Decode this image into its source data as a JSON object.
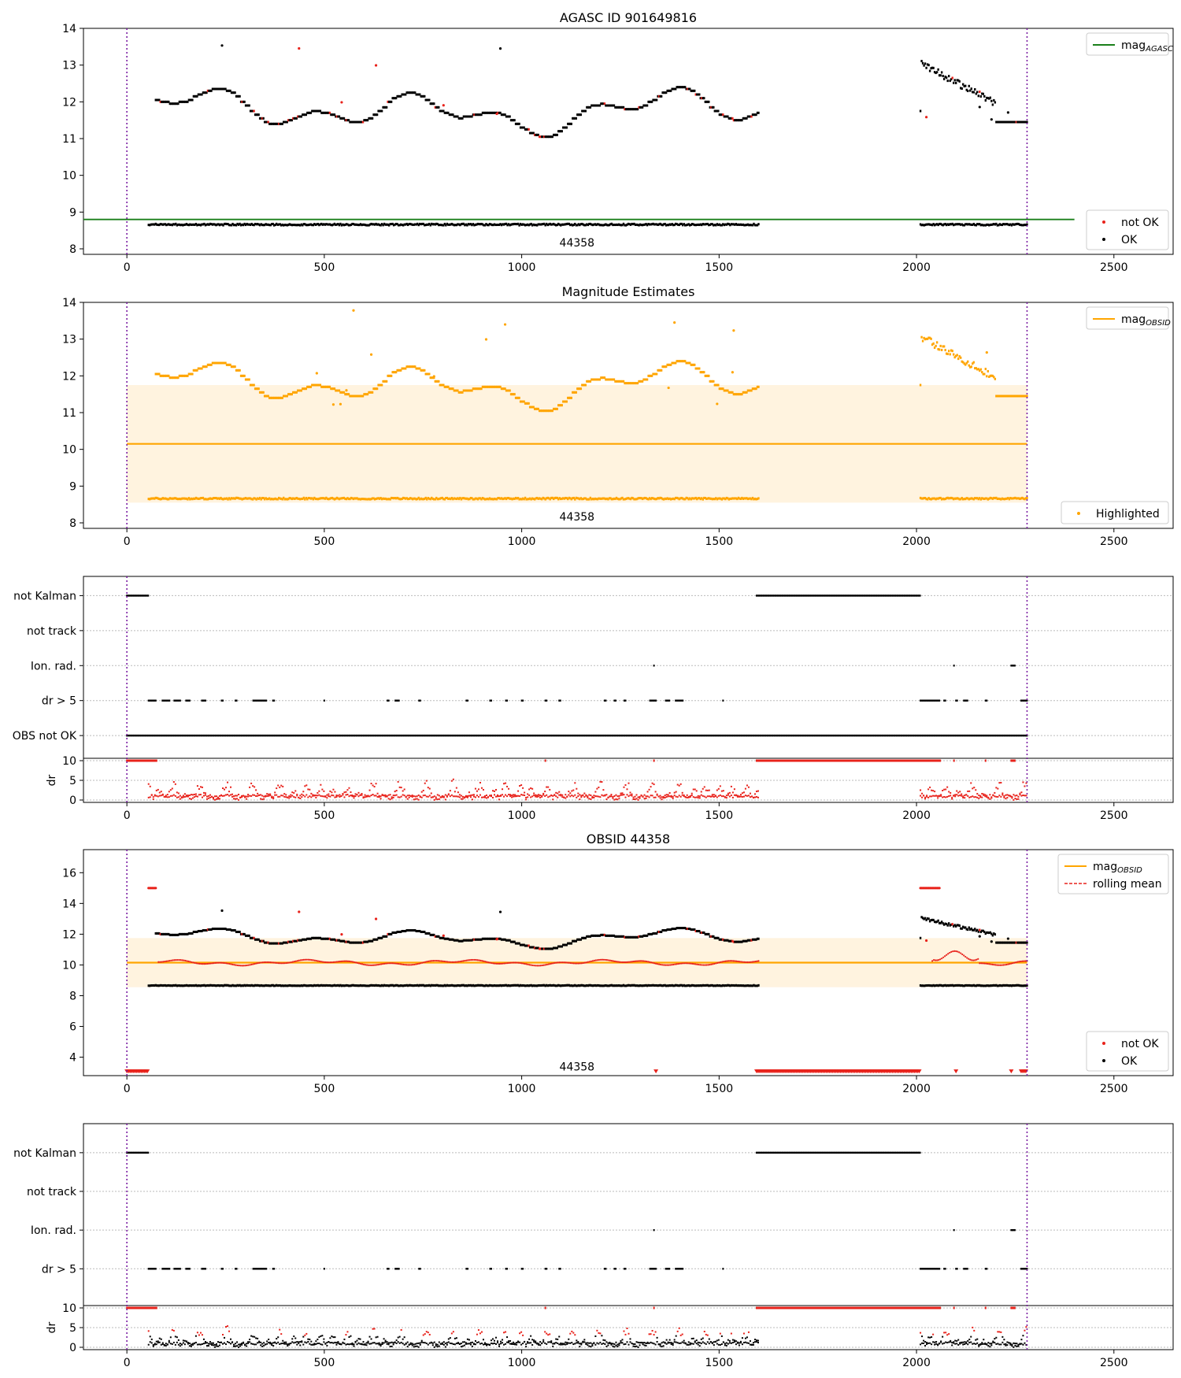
{
  "chart_data": [
    {
      "type": "scatter",
      "title": "AGASC ID 901649816",
      "xlabel": "",
      "ylabel": "",
      "xlim": [
        -110,
        2650
      ],
      "ylim": [
        7.85,
        14.0
      ],
      "xticks": [
        0,
        500,
        1000,
        1500,
        2000,
        2500
      ],
      "yticks": [
        8,
        9,
        10,
        11,
        12,
        13,
        14
      ],
      "grid": false,
      "vlines": [
        0,
        2280
      ],
      "hlines": [
        {
          "name": "mag_AGASC",
          "y": 8.8,
          "x_range": [
            -110,
            2400
          ],
          "color": "#1a7f1a"
        }
      ],
      "obsid_label": {
        "text": "44358",
        "x": 1140,
        "y": 8.17
      },
      "legends": [
        {
          "placement": "upper right",
          "entries": [
            {
              "label": "mag",
              "sub": "AGASC",
              "kind": "line",
              "color": "#1a7f1a"
            }
          ]
        },
        {
          "placement": "lower right",
          "entries": [
            {
              "label": "not OK",
              "kind": "dot",
              "color": "#e8221b"
            },
            {
              "label": "OK",
              "kind": "dot",
              "color": "#000000"
            }
          ]
        }
      ],
      "band": null,
      "line_y": null,
      "segments": [
        [
          55,
          1600
        ],
        [
          2010,
          2280
        ]
      ],
      "series": [
        {
          "name": "OK",
          "color": "#000000"
        },
        {
          "name": "not OK",
          "color": "#e8221b"
        }
      ]
    },
    {
      "type": "scatter",
      "title": "Magnitude Estimates",
      "xlabel": "",
      "ylabel": "",
      "xlim": [
        -110,
        2650
      ],
      "ylim": [
        7.85,
        14.0
      ],
      "xticks": [
        0,
        500,
        1000,
        1500,
        2000,
        2500
      ],
      "yticks": [
        8,
        9,
        10,
        11,
        12,
        13,
        14
      ],
      "grid": false,
      "vlines": [
        0,
        2280
      ],
      "band": {
        "y_low": 8.55,
        "y_high": 11.75,
        "x_range": [
          0,
          2280
        ],
        "color": "#fff3df"
      },
      "line_y": {
        "y": 10.15,
        "x_range": [
          0,
          2280
        ],
        "color": "#ffa500"
      },
      "obsid_label": {
        "text": "44358",
        "x": 1140,
        "y": 8.17
      },
      "legends": [
        {
          "placement": "upper right",
          "entries": [
            {
              "label": "mag",
              "sub": "OBSID",
              "kind": "line",
              "color": "#ffa500"
            }
          ]
        },
        {
          "placement": "lower right",
          "entries": [
            {
              "label": "Highlighted",
              "kind": "dot",
              "color": "#ffa500"
            }
          ]
        }
      ],
      "segments": [
        [
          55,
          1600
        ],
        [
          2010,
          2280
        ]
      ],
      "series": [
        {
          "name": "Highlighted",
          "color": "#ffa500"
        }
      ]
    },
    {
      "type": "scatter",
      "title": "",
      "categories": [
        "not Kalman",
        "not track",
        "Ion. rad.",
        "dr > 5",
        "OBS not OK"
      ],
      "xlim": [
        -110,
        2650
      ],
      "xticks": [
        0,
        500,
        1000,
        1500,
        2000,
        2500
      ],
      "vlines": [
        0,
        2280
      ],
      "flag_ranges": {
        "not Kalman": [
          [
            0,
            55
          ],
          [
            1595,
            2010
          ]
        ],
        "not track": [],
        "Ion. rad.": [
          [
            1335,
            1336
          ],
          [
            2095,
            2096
          ],
          [
            2240,
            2250
          ]
        ],
        "dr > 5": [
          [
            55,
            75
          ],
          [
            90,
            110
          ],
          [
            120,
            135
          ],
          [
            150,
            160
          ],
          [
            190,
            200
          ],
          [
            240,
            245
          ],
          [
            275,
            280
          ],
          [
            320,
            355
          ],
          [
            370,
            375
          ],
          [
            500,
            502
          ],
          [
            660,
            665
          ],
          [
            680,
            690
          ],
          [
            740,
            745
          ],
          [
            860,
            865
          ],
          [
            920,
            925
          ],
          [
            960,
            965
          ],
          [
            1000,
            1005
          ],
          [
            1060,
            1065
          ],
          [
            1095,
            1100
          ],
          [
            1210,
            1215
          ],
          [
            1235,
            1240
          ],
          [
            1260,
            1265
          ],
          [
            1325,
            1340
          ],
          [
            1365,
            1375
          ],
          [
            1390,
            1410
          ],
          [
            1510,
            1512
          ],
          [
            2010,
            2060
          ],
          [
            2070,
            2075
          ],
          [
            2100,
            2105
          ],
          [
            2120,
            2130
          ],
          [
            2175,
            2180
          ],
          [
            2265,
            2280
          ]
        ],
        "OBS not OK": [
          [
            0,
            2280
          ]
        ]
      },
      "dr_subpanel": {
        "ylabel": "dr",
        "ylim": [
          0,
          10
        ],
        "yticks": [
          0,
          5,
          10
        ],
        "threshold": 5,
        "color": "#e8221b"
      },
      "grid": true
    },
    {
      "type": "scatter",
      "title": "OBSID 44358",
      "xlabel": "",
      "ylabel": "",
      "xlim": [
        -110,
        2650
      ],
      "ylim": [
        2.8,
        17.5
      ],
      "xticks": [
        0,
        500,
        1000,
        1500,
        2000,
        2500
      ],
      "yticks": [
        4,
        6,
        8,
        10,
        12,
        14,
        16
      ],
      "grid": false,
      "vlines": [
        0,
        2280
      ],
      "band": {
        "y_low": 8.55,
        "y_high": 11.75,
        "x_range": [
          0,
          2280
        ],
        "color": "#fff3df"
      },
      "line_y": {
        "y": 10.15,
        "x_range": [
          0,
          2280
        ],
        "color": "#ffa500"
      },
      "obsid_label": {
        "text": "44358",
        "x": 1140,
        "y": 3.4
      },
      "legends": [
        {
          "placement": "upper right",
          "entries": [
            {
              "label": "mag",
              "sub": "OBSID",
              "kind": "line",
              "color": "#ffa500"
            },
            {
              "label": "rolling mean",
              "kind": "dashed",
              "color": "#e8221b"
            }
          ]
        },
        {
          "placement": "lower right",
          "entries": [
            {
              "label": "not OK",
              "kind": "dot",
              "color": "#e8221b"
            },
            {
              "label": "OK",
              "kind": "dot",
              "color": "#000000"
            }
          ]
        }
      ],
      "segments": [
        [
          55,
          1600
        ],
        [
          2010,
          2280
        ]
      ],
      "series": [
        {
          "name": "OK",
          "color": "#000000"
        },
        {
          "name": "not OK",
          "color": "#e8221b"
        },
        {
          "name": "rolling mean",
          "color": "#e8221b"
        }
      ]
    },
    {
      "type": "scatter",
      "title": "",
      "categories": [
        "not Kalman",
        "not track",
        "Ion. rad.",
        "dr > 5"
      ],
      "xlim": [
        -110,
        2650
      ],
      "xticks": [
        0,
        500,
        1000,
        1500,
        2000,
        2500
      ],
      "vlines": [
        0,
        2280
      ],
      "flag_ranges": {
        "not Kalman": [
          [
            0,
            55
          ],
          [
            1595,
            2010
          ]
        ],
        "not track": [],
        "Ion. rad.": [
          [
            1335,
            1336
          ],
          [
            2095,
            2096
          ],
          [
            2240,
            2250
          ]
        ],
        "dr > 5": [
          [
            55,
            75
          ],
          [
            90,
            110
          ],
          [
            120,
            135
          ],
          [
            150,
            160
          ],
          [
            190,
            200
          ],
          [
            240,
            245
          ],
          [
            275,
            280
          ],
          [
            320,
            355
          ],
          [
            370,
            375
          ],
          [
            500,
            502
          ],
          [
            660,
            665
          ],
          [
            680,
            690
          ],
          [
            740,
            745
          ],
          [
            860,
            865
          ],
          [
            920,
            925
          ],
          [
            960,
            965
          ],
          [
            1000,
            1005
          ],
          [
            1060,
            1065
          ],
          [
            1095,
            1100
          ],
          [
            1210,
            1215
          ],
          [
            1235,
            1240
          ],
          [
            1260,
            1265
          ],
          [
            1325,
            1340
          ],
          [
            1365,
            1375
          ],
          [
            1390,
            1410
          ],
          [
            1510,
            1512
          ],
          [
            2010,
            2060
          ],
          [
            2070,
            2075
          ],
          [
            2100,
            2105
          ],
          [
            2120,
            2130
          ],
          [
            2175,
            2180
          ],
          [
            2265,
            2280
          ]
        ]
      },
      "dr_subpanel": {
        "ylabel": "dr",
        "ylim": [
          0,
          10
        ],
        "yticks": [
          0,
          5,
          10
        ],
        "threshold": 5,
        "color": "#e8221b"
      },
      "grid": true
    }
  ]
}
